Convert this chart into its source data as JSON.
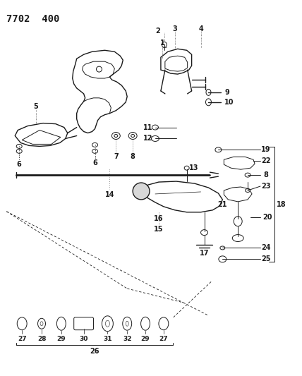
{
  "title": "7702  400",
  "bg_color": "#ffffff",
  "line_color": "#1a1a1a",
  "fig_width": 4.28,
  "fig_height": 5.33,
  "dpi": 100
}
